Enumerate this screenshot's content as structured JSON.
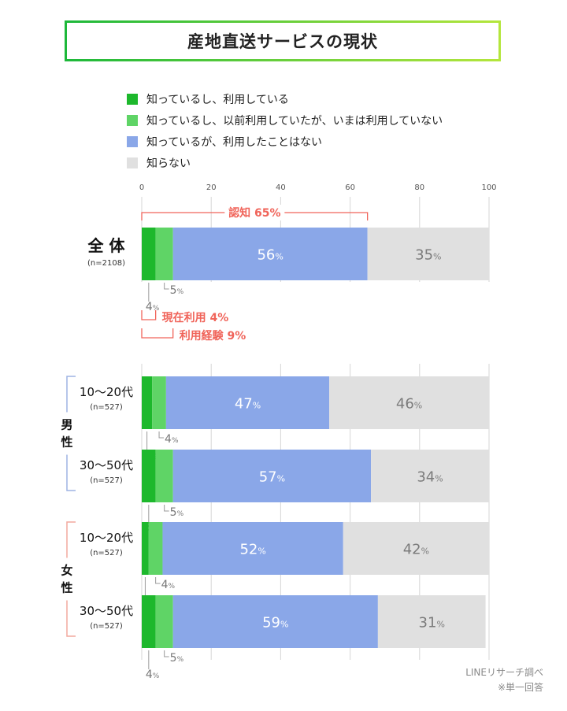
{
  "title": "産地直送サービスの現状",
  "legend": [
    {
      "label": "知っているし、利用している",
      "color": "#1db82c"
    },
    {
      "label": "知っているし、以前利用していたが、いまは利用していない",
      "color": "#5fd466"
    },
    {
      "label": "知っているが、利用したことはない",
      "color": "#8aa7e8"
    },
    {
      "label": "知らない",
      "color": "#e0e0e0"
    }
  ],
  "chart_data": {
    "type": "bar",
    "stacked": true,
    "orientation": "horizontal",
    "x_ticks": [
      "0",
      "20",
      "40",
      "60",
      "80",
      "100"
    ],
    "xlim": [
      0,
      100
    ],
    "categories": [
      "全 体",
      "10〜20代",
      "30〜50代",
      "10〜20代",
      "30〜50代"
    ],
    "category_n": [
      "(n=2108)",
      "(n=527)",
      "(n=527)",
      "(n=527)",
      "(n=527)"
    ],
    "series": [
      {
        "name": "知っているし、利用している",
        "values": [
          4,
          3,
          4,
          2,
          4
        ],
        "labels": [
          "4%",
          "3%",
          "4%",
          "2%",
          "4%"
        ]
      },
      {
        "name": "知っているし、以前利用していたが、いまは利用していない",
        "values": [
          5,
          4,
          5,
          4,
          5
        ],
        "labels": [
          "5%",
          "4%",
          "5%",
          "4%",
          "5%"
        ]
      },
      {
        "name": "知っているが、利用したことはない",
        "values": [
          56,
          47,
          57,
          52,
          59
        ],
        "labels": [
          "56%",
          "47%",
          "57%",
          "52%",
          "59%"
        ]
      },
      {
        "name": "知らない",
        "values": [
          35,
          46,
          34,
          42,
          31
        ],
        "labels": [
          "35%",
          "46%",
          "34%",
          "42%",
          "31%"
        ]
      }
    ],
    "groups": [
      {
        "label": "男\n性",
        "color": "#9db3e3"
      },
      {
        "label": "女\n性",
        "color": "#f2a99e"
      }
    ],
    "annotations": [
      {
        "label": "認知 65%",
        "from": 0,
        "to": 65
      },
      {
        "label": "現在利用 4%",
        "from": 0,
        "to": 4
      },
      {
        "label": "利用経験 9%",
        "from": 0,
        "to": 9
      }
    ],
    "annotation_color": "#f0645a"
  },
  "source": "LINEリサーチ調べ",
  "footnote": "※単一回答"
}
